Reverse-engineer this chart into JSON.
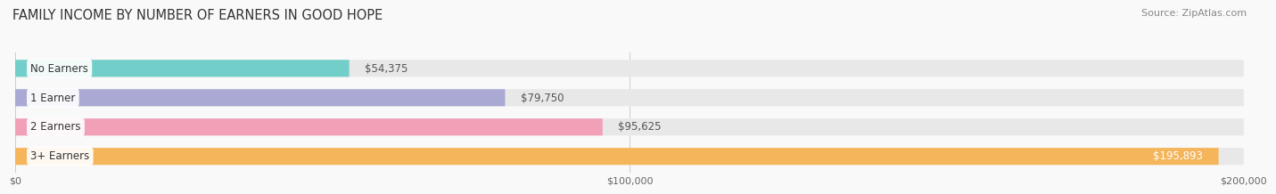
{
  "title": "FAMILY INCOME BY NUMBER OF EARNERS IN GOOD HOPE",
  "source": "Source: ZipAtlas.com",
  "categories": [
    "No Earners",
    "1 Earner",
    "2 Earners",
    "3+ Earners"
  ],
  "values": [
    54375,
    79750,
    95625,
    195893
  ],
  "bar_colors": [
    "#72cec8",
    "#a9a9d4",
    "#f2a0b8",
    "#f5b55a"
  ],
  "bar_bg_color": "#e8e8e8",
  "label_colors": [
    "#444444",
    "#444444",
    "#444444",
    "#ffffff"
  ],
  "max_value": 200000,
  "xticks": [
    0,
    100000,
    200000
  ],
  "xtick_labels": [
    "$0",
    "$100,000",
    "$200,000"
  ],
  "background_color": "#f9f9f9",
  "title_fontsize": 10.5,
  "bar_height": 0.58,
  "value_fontsize": 8.5,
  "label_fontsize": 8.5,
  "source_fontsize": 8
}
